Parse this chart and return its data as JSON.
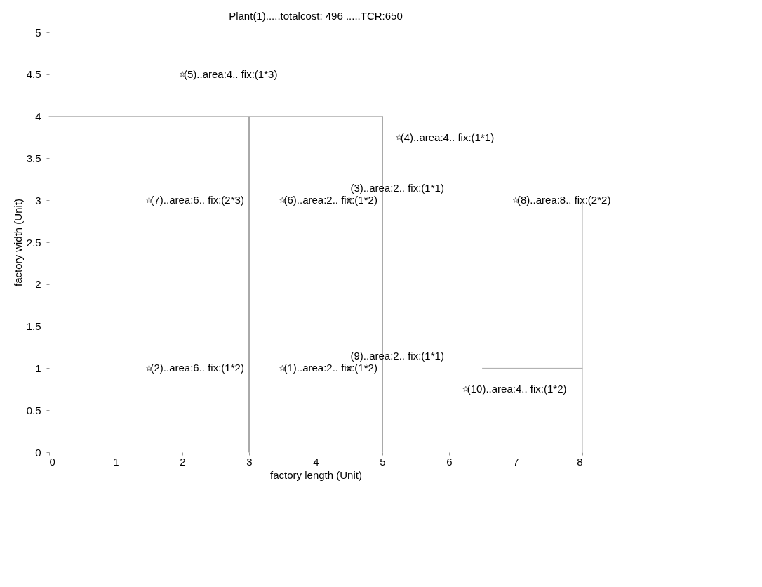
{
  "chart_data": {
    "type": "scatter",
    "title": "Plant(1).....totalcost: 496 .....TCR:650",
    "xlabel": "factory length (Unit)",
    "ylabel": "factory width (Unit)",
    "xlim": [
      0,
      8
    ],
    "ylim": [
      0,
      5
    ],
    "xticks": [
      0,
      1,
      2,
      3,
      4,
      5,
      6,
      7,
      8
    ],
    "yticks": [
      0,
      0.5,
      1,
      1.5,
      2,
      2.5,
      3,
      3.5,
      4,
      4.5,
      5
    ],
    "grid": false,
    "series": [
      {
        "type": "line",
        "x": [
          3,
          3
        ],
        "values": [
          0,
          4
        ],
        "color": "#555555"
      },
      {
        "type": "line",
        "x": [
          5,
          5
        ],
        "values": [
          0,
          4
        ],
        "color": "#555555"
      },
      {
        "type": "line",
        "x": [
          0,
          5
        ],
        "values": [
          4,
          4
        ],
        "color": "#bbbbbb"
      },
      {
        "type": "line",
        "x": [
          8,
          8
        ],
        "values": [
          0,
          3
        ],
        "color": "#aaaaaa"
      },
      {
        "type": "line",
        "x": [
          6.5,
          8
        ],
        "values": [
          1,
          1
        ],
        "color": "#aaaaaa"
      },
      {
        "marker": "star",
        "x": [
          3.5,
          1.5,
          4.5,
          5.25,
          2,
          3.5,
          1.5,
          7,
          4.5,
          6.25
        ],
        "values": [
          1,
          1,
          3,
          3.75,
          4.5,
          3,
          3,
          3,
          1,
          0.75
        ],
        "color": "#777777"
      }
    ],
    "annotations": [
      {
        "text": "(1)..area:2.. fix:(1*2)",
        "x": 3.5,
        "y": 1
      },
      {
        "text": "(2)..area:6.. fix:(1*2)",
        "x": 1.5,
        "y": 1
      },
      {
        "text": "(3)..area:2.. fix:(1*1)",
        "x": 4.5,
        "y": 3
      },
      {
        "text": "(4)..area:4.. fix:(1*1)",
        "x": 5.25,
        "y": 3.75
      },
      {
        "text": "(5)..area:4.. fix:(1*3)",
        "x": 2,
        "y": 4.5
      },
      {
        "text": "(6)..area:2.. fix:(1*2)",
        "x": 3.5,
        "y": 3
      },
      {
        "text": "(7)..area:6.. fix:(2*3)",
        "x": 1.5,
        "y": 3
      },
      {
        "text": "(8)..area:8.. fix:(2*2)",
        "x": 7,
        "y": 3
      },
      {
        "text": "(9)..area:2.. fix:(1*1)",
        "x": 4.5,
        "y": 1
      },
      {
        "text": "(10)..area:4.. fix:(1*2)",
        "x": 6.25,
        "y": 0.75
      }
    ]
  }
}
